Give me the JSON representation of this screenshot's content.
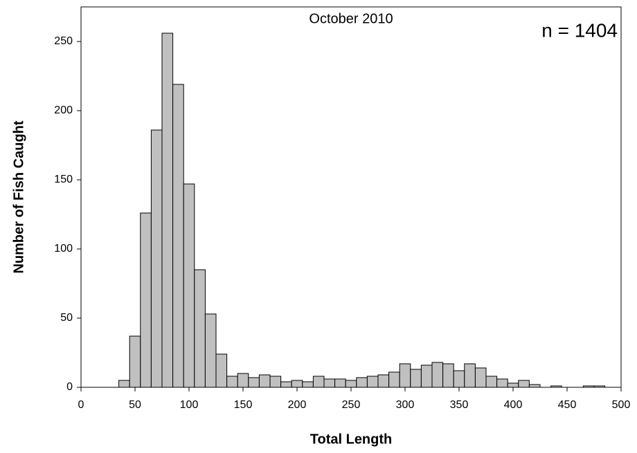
{
  "chart_data": {
    "type": "histogram",
    "title": "October 2010",
    "annotation": "n = 1404",
    "x_label": "Total Length",
    "y_label": "Number of Fish Caught",
    "bins": [
      35,
      45,
      55,
      65,
      75,
      85,
      95,
      105,
      115,
      125,
      135,
      145,
      155,
      165,
      175,
      185,
      195,
      205,
      215,
      225,
      235,
      245,
      255,
      265,
      275,
      285,
      295,
      305,
      315,
      325,
      335,
      345,
      355,
      365,
      375,
      385,
      395,
      405,
      415,
      425,
      435,
      445,
      455,
      465,
      475,
      485
    ],
    "values": [
      5,
      37,
      126,
      186,
      256,
      219,
      147,
      85,
      53,
      24,
      8,
      10,
      7,
      9,
      8,
      4,
      5,
      4,
      8,
      6,
      6,
      5,
      7,
      8,
      9,
      11,
      17,
      13,
      16,
      18,
      17,
      12,
      17,
      14,
      8,
      6,
      3,
      5,
      2,
      0,
      1,
      0,
      0,
      1,
      1
    ],
    "color": "#c0c0c0",
    "xlim": [
      0,
      500
    ],
    "xticks": [
      0,
      50,
      100,
      150,
      200,
      250,
      300,
      350,
      400,
      450,
      500
    ],
    "ylim": [
      0,
      275
    ],
    "yticks": [
      0,
      50,
      100,
      150,
      200,
      250
    ]
  }
}
